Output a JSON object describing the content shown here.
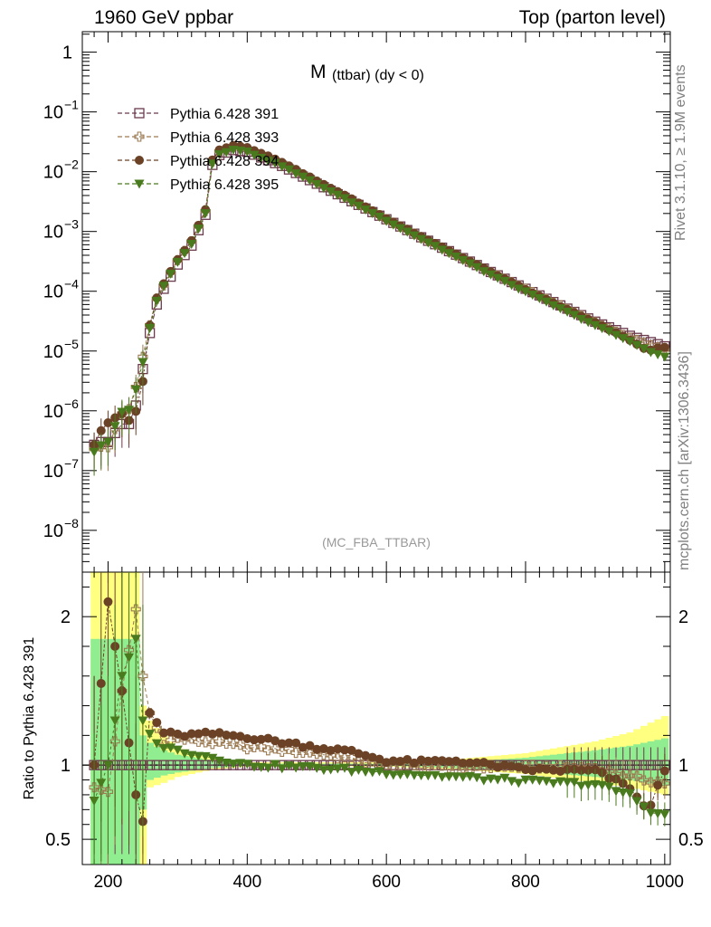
{
  "header": {
    "left": "1960 GeV ppbar",
    "right": "Top (parton level)"
  },
  "side_labels": {
    "rivet": "Rivet 3.1.10, ≥ 1.9M events",
    "mcplots": "mcplots.cern.ch [arXiv:1306.3436]"
  },
  "chart_data": {
    "type": "scatter",
    "title_main": "M",
    "title_sub": "(ttbar) (dy < 0)",
    "watermark": "(MC_FBA_TTBAR)",
    "x_ticks": [
      200,
      400,
      600,
      800,
      1000
    ],
    "xlim": [
      163,
      1008
    ],
    "main": {
      "yscale": "log",
      "ylim": [
        2e-09,
        2.2
      ],
      "y_ticks": [
        {
          "v": 1,
          "label": "1"
        },
        {
          "v": 0.1,
          "label": "10",
          "sup": "−1"
        },
        {
          "v": 0.01,
          "label": "10",
          "sup": "−2"
        },
        {
          "v": 0.001,
          "label": "10",
          "sup": "−3"
        },
        {
          "v": 0.0001,
          "label": "10",
          "sup": "−4"
        },
        {
          "v": 1e-05,
          "label": "10",
          "sup": "−5"
        },
        {
          "v": 1e-06,
          "label": "10",
          "sup": "−6"
        },
        {
          "v": 1e-07,
          "label": "10",
          "sup": "−7"
        },
        {
          "v": 1e-08,
          "label": "10",
          "sup": "−8"
        }
      ],
      "anchors": [
        [
          180,
          2.7e-07
        ],
        [
          190,
          3e-07
        ],
        [
          205,
          3e-07
        ],
        [
          215,
          6e-07
        ],
        [
          235,
          6e-07
        ],
        [
          245,
          2.5e-06
        ],
        [
          260,
          2e-05
        ],
        [
          270,
          6e-05
        ],
        [
          280,
          0.00011
        ],
        [
          300,
          0.00028
        ],
        [
          320,
          0.00058
        ],
        [
          340,
          0.0019
        ],
        [
          350,
          0.013
        ],
        [
          360,
          0.019
        ],
        [
          380,
          0.023
        ],
        [
          400,
          0.0215
        ],
        [
          450,
          0.0125
        ],
        [
          500,
          0.0063
        ],
        [
          550,
          0.0032
        ],
        [
          600,
          0.0016
        ],
        [
          650,
          0.0008
        ],
        [
          700,
          0.00041
        ],
        [
          750,
          0.00021
        ],
        [
          800,
          0.00011
        ],
        [
          850,
          5.8e-05
        ],
        [
          900,
          3.1e-05
        ],
        [
          950,
          1.8e-05
        ],
        [
          1000,
          1.2e-05
        ]
      ]
    },
    "ratio": {
      "ylabel": "Ratio to Pythia 6.428 391",
      "ylim": [
        0.33,
        2.3
      ],
      "y_ticks": [
        {
          "v": 0.5,
          "label": "0.5"
        },
        {
          "v": 1,
          "label": "1"
        },
        {
          "v": 2,
          "label": "2"
        }
      ],
      "band_yellow": [
        [
          180,
          0.3,
          2.3
        ],
        [
          190,
          0.3,
          2.3
        ],
        [
          200,
          0.3,
          2.3
        ],
        [
          210,
          0.3,
          2.3
        ],
        [
          220,
          0.3,
          2.3
        ],
        [
          230,
          0.3,
          2.3
        ],
        [
          240,
          0.3,
          2.3
        ],
        [
          250,
          0.3,
          1.4
        ],
        [
          260,
          0.85,
          1.3
        ],
        [
          280,
          0.88,
          1.2
        ],
        [
          300,
          0.92,
          1.12
        ],
        [
          350,
          0.97,
          1.05
        ],
        [
          400,
          0.99,
          1.02
        ],
        [
          600,
          0.99,
          1.02
        ],
        [
          700,
          0.97,
          1.04
        ],
        [
          800,
          0.94,
          1.08
        ],
        [
          900,
          0.88,
          1.16
        ],
        [
          950,
          0.85,
          1.22
        ],
        [
          1000,
          0.8,
          1.33
        ]
      ],
      "band_green": [
        [
          180,
          0.3,
          1.85
        ],
        [
          190,
          0.3,
          1.85
        ],
        [
          200,
          0.3,
          1.85
        ],
        [
          210,
          0.3,
          1.85
        ],
        [
          220,
          0.3,
          1.85
        ],
        [
          230,
          0.3,
          1.85
        ],
        [
          240,
          0.3,
          1.85
        ],
        [
          250,
          0.7,
          1.2
        ],
        [
          260,
          0.9,
          1.15
        ],
        [
          280,
          0.93,
          1.1
        ],
        [
          300,
          0.95,
          1.07
        ],
        [
          350,
          0.98,
          1.03
        ],
        [
          400,
          0.995,
          1.01
        ],
        [
          600,
          0.995,
          1.01
        ],
        [
          700,
          0.98,
          1.02
        ],
        [
          800,
          0.96,
          1.05
        ],
        [
          900,
          0.92,
          1.1
        ],
        [
          950,
          0.9,
          1.13
        ],
        [
          1000,
          0.86,
          1.18
        ]
      ]
    },
    "series": [
      {
        "name": "Pythia 6.428 391",
        "color": "#6b3a4d",
        "marker": "open-square",
        "ratio_anchors": [
          [
            180,
            1
          ],
          [
            1000,
            1
          ]
        ]
      },
      {
        "name": "Pythia 6.428 393",
        "color": "#9c7b52",
        "marker": "open-cross",
        "ratio_anchors": [
          [
            180,
            0.85
          ],
          [
            200,
            0.82
          ],
          [
            220,
            1.5
          ],
          [
            240,
            2.05
          ],
          [
            250,
            1.6
          ],
          [
            260,
            1.35
          ],
          [
            280,
            1.15
          ],
          [
            300,
            1.18
          ],
          [
            350,
            1.15
          ],
          [
            400,
            1.12
          ],
          [
            500,
            1.08
          ],
          [
            600,
            1.0
          ],
          [
            700,
            0.98
          ],
          [
            800,
            0.99
          ],
          [
            900,
            0.98
          ],
          [
            950,
            0.92
          ],
          [
            1000,
            0.88
          ]
        ]
      },
      {
        "name": "Pythia 6.428 394",
        "color": "#6b4226",
        "marker": "filled-circle",
        "ratio_anchors": [
          [
            180,
            1.0
          ],
          [
            200,
            2.1
          ],
          [
            220,
            1.5
          ],
          [
            240,
            0.8
          ],
          [
            250,
            0.62
          ],
          [
            260,
            1.35
          ],
          [
            280,
            1.22
          ],
          [
            300,
            1.2
          ],
          [
            350,
            1.21
          ],
          [
            400,
            1.19
          ],
          [
            500,
            1.12
          ],
          [
            550,
            1.09
          ],
          [
            600,
            1.03
          ],
          [
            650,
            1.02
          ],
          [
            700,
            1.03
          ],
          [
            800,
            0.97
          ],
          [
            900,
            0.96
          ],
          [
            950,
            0.85
          ],
          [
            975,
            0.68
          ],
          [
            1000,
            0.97
          ]
        ]
      },
      {
        "name": "Pythia 6.428 395",
        "color": "#4a7a1e",
        "marker": "filled-triangle-down",
        "ratio_anchors": [
          [
            180,
            0.76
          ],
          [
            200,
            1.0
          ],
          [
            220,
            1.6
          ],
          [
            240,
            1.85
          ],
          [
            250,
            1.3
          ],
          [
            260,
            1.2
          ],
          [
            280,
            1.12
          ],
          [
            300,
            1.1
          ],
          [
            350,
            1.05
          ],
          [
            400,
            1.0
          ],
          [
            500,
            0.98
          ],
          [
            600,
            0.95
          ],
          [
            700,
            0.92
          ],
          [
            800,
            0.89
          ],
          [
            900,
            0.87
          ],
          [
            950,
            0.8
          ],
          [
            975,
            0.7
          ],
          [
            1000,
            0.66
          ]
        ]
      }
    ]
  }
}
